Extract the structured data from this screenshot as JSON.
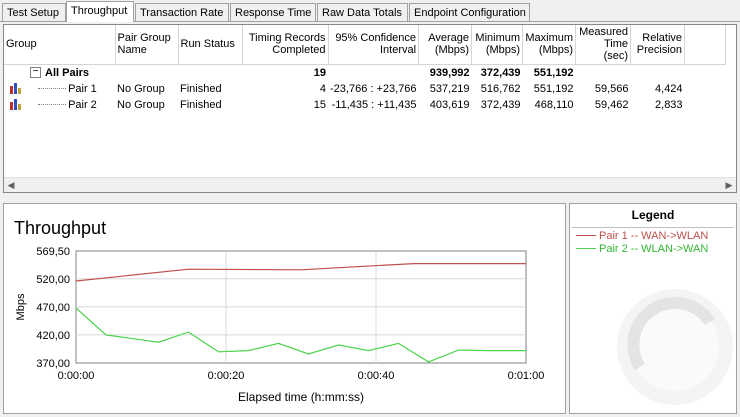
{
  "tabs": [
    {
      "label": "Test Setup",
      "active": false
    },
    {
      "label": "Throughput",
      "active": true
    },
    {
      "label": "Transaction Rate",
      "active": false
    },
    {
      "label": "Response Time",
      "active": false
    },
    {
      "label": "Raw Data Totals",
      "active": false
    },
    {
      "label": "Endpoint Configuration",
      "active": false
    }
  ],
  "grid": {
    "columns": [
      "Group",
      "Pair Group Name",
      "Run Status",
      "Timing Records Completed",
      "95% Confidence Interval",
      "Average (Mbps)",
      "Minimum (Mbps)",
      "Maximum (Mbps)",
      "Measured Time (sec)",
      "Relative Precision"
    ],
    "all_pairs": {
      "label": "All Pairs",
      "toggle": "−",
      "records": "19",
      "average": "939,992",
      "minimum": "372,439",
      "maximum": "551,192"
    },
    "pairs": [
      {
        "name": "Pair 1",
        "group": "No Group",
        "status": "Finished",
        "records": "4",
        "ci": "-23,766 : +23,766",
        "average": "537,219",
        "minimum": "516,762",
        "maximum": "551,192",
        "time": "59,566",
        "precision": "4,424"
      },
      {
        "name": "Pair 2",
        "group": "No Group",
        "status": "Finished",
        "records": "15",
        "ci": "-11,435 : +11,435",
        "average": "403,619",
        "minimum": "372,439",
        "maximum": "468,110",
        "time": "59,462",
        "precision": "2,833"
      }
    ]
  },
  "chart_data": {
    "type": "line",
    "title": "Throughput",
    "xlabel": "Elapsed time (h:mm:ss)",
    "ylabel": "Mbps",
    "x_ticks": [
      "0:00:00",
      "0:00:20",
      "0:00:40",
      "0:01:00"
    ],
    "y_ticks": [
      "370,00",
      "420,00",
      "470,00",
      "520,00",
      "569,50"
    ],
    "xlim": [
      0,
      60
    ],
    "ylim": [
      370,
      569.5
    ],
    "grid": true,
    "series": [
      {
        "name": "Pair 1 -- WAN->WLAN",
        "color": "#c0504d",
        "x": [
          0,
          15,
          30,
          45,
          60
        ],
        "y": [
          516,
          537,
          536,
          547,
          547
        ]
      },
      {
        "name": "Pair 2 -- WLAN->WAN",
        "color": "#4cd44c",
        "x": [
          0,
          4,
          11,
          15,
          19,
          23,
          27,
          31,
          35,
          39,
          43,
          47,
          51,
          55,
          60
        ],
        "y": [
          468,
          420,
          407,
          425,
          390,
          392,
          405,
          386,
          402,
          392,
          405,
          372,
          393,
          392,
          392
        ]
      }
    ]
  },
  "legend": {
    "title": "Legend",
    "items": [
      {
        "label": "Pair 1 -- WAN->WLAN",
        "color": "#c0504d"
      },
      {
        "label": "Pair 2 -- WLAN->WAN",
        "color": "#4cd44c"
      }
    ]
  }
}
